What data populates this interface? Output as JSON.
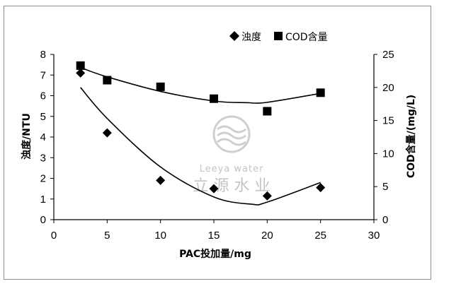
{
  "chart_data": {
    "type": "scatter",
    "x": [
      2.5,
      5,
      10,
      15,
      20,
      25
    ],
    "series": [
      {
        "name": "浊度",
        "axis": "left",
        "marker": "diamond",
        "values": [
          7.1,
          4.2,
          1.9,
          1.5,
          1.15,
          1.55
        ]
      },
      {
        "name": "COD含量",
        "axis": "right",
        "marker": "square",
        "values": [
          23.3,
          21.1,
          20.1,
          18.3,
          16.4,
          19.2
        ]
      }
    ],
    "trendlines": [
      {
        "series": "浊度",
        "x_range": [
          2.5,
          25
        ],
        "points": [
          [
            2.5,
            6.4
          ],
          [
            5,
            4.9
          ],
          [
            10,
            2.55
          ],
          [
            15,
            1.1
          ],
          [
            18.5,
            0.75
          ],
          [
            20,
            0.85
          ],
          [
            25,
            1.8
          ]
        ]
      },
      {
        "series": "COD含量",
        "x_range": [
          2.5,
          25
        ],
        "points": [
          [
            2.5,
            23.0
          ],
          [
            5,
            21.6
          ],
          [
            10,
            19.4
          ],
          [
            15,
            17.95
          ],
          [
            18,
            17.7
          ],
          [
            20,
            17.75
          ],
          [
            25,
            19.1
          ]
        ]
      }
    ],
    "xlabel": "PAC投加量/mg",
    "ylabel": "浊度/NTU",
    "y2label": "COD含量/(mg/L)",
    "xlim": [
      0,
      30
    ],
    "xticks": [
      0,
      5,
      10,
      15,
      20,
      25,
      30
    ],
    "ylim": [
      0,
      8
    ],
    "yticks": [
      0,
      1,
      2,
      3,
      4,
      5,
      6,
      7,
      8
    ],
    "y2lim": [
      0,
      25
    ],
    "y2ticks": [
      0,
      5,
      10,
      15,
      20,
      25
    ],
    "grid": false,
    "legend_position": "top-right"
  },
  "watermark": {
    "line1": "Leeya water",
    "line2": "立 源 水 业"
  },
  "colors": {
    "marker": "#000000",
    "axis": "#000000",
    "frame": "#8c8c8c",
    "watermark": "#c4c4c4"
  }
}
